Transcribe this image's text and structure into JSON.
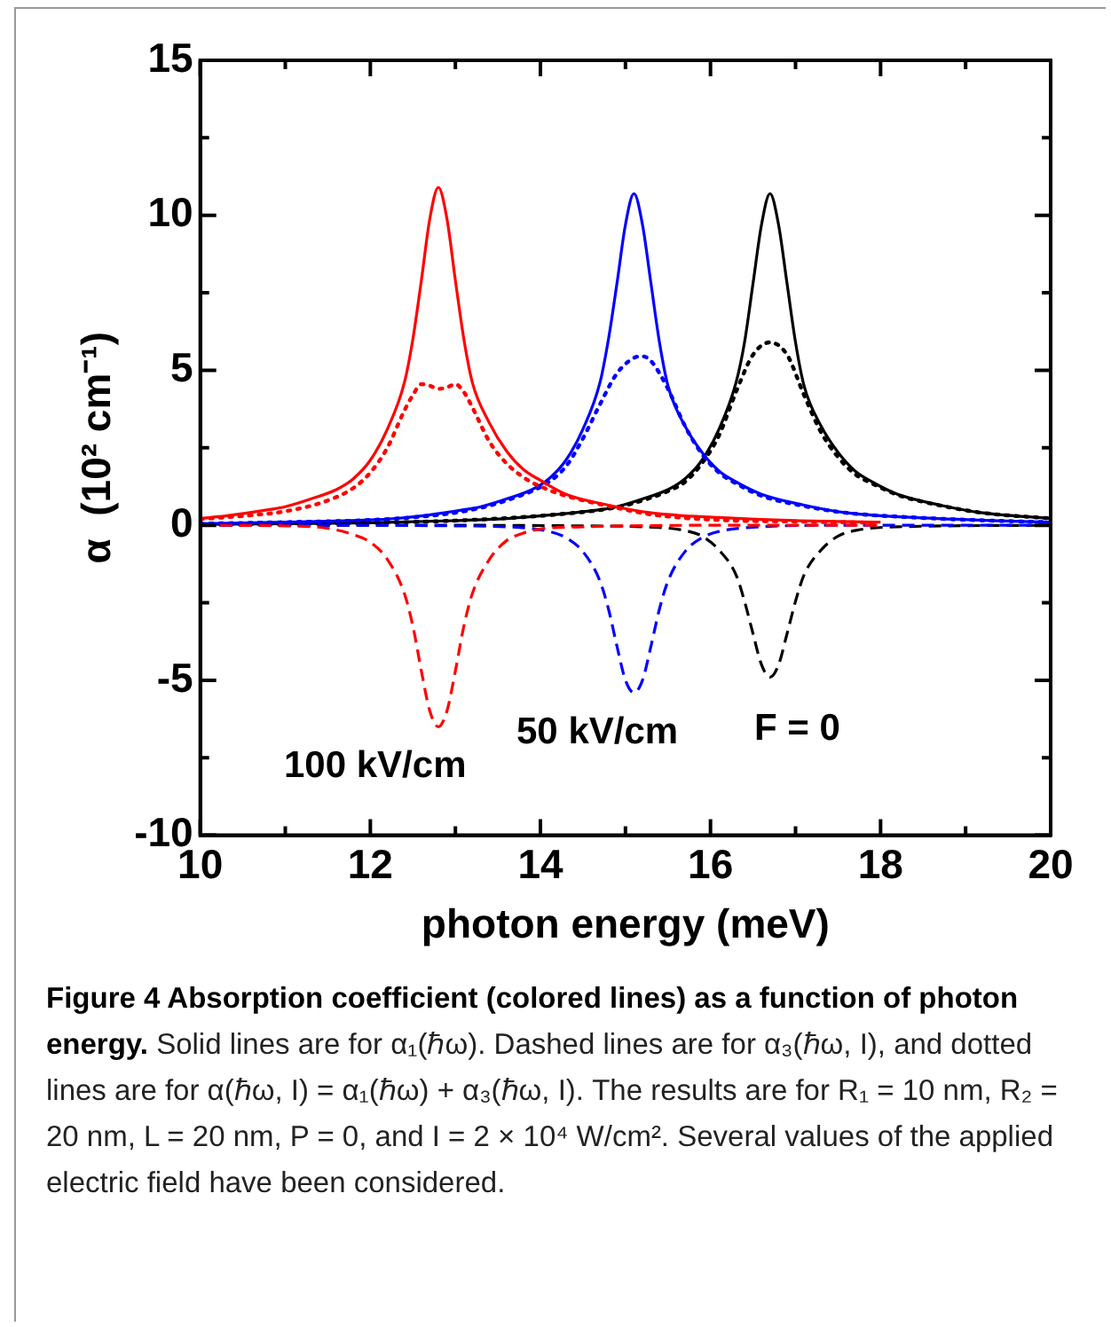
{
  "chart_data": {
    "type": "line",
    "xlabel": "photon energy (meV)",
    "ylabel": "α  (10² cm⁻¹)",
    "xlim": [
      10,
      20
    ],
    "xticks": [
      10,
      {
        "value": 11,
        "label": null
      },
      12,
      {
        "value": 13,
        "label": null
      },
      14,
      {
        "value": 15,
        "label": null
      },
      16,
      {
        "value": 17,
        "label": null
      },
      18,
      {
        "value": 19,
        "label": null
      },
      20
    ],
    "ylim": [
      -10,
      15
    ],
    "yticks": [
      -10,
      {
        "value": -7.5,
        "label": null
      },
      -5,
      {
        "value": -2.5,
        "label": null
      },
      0,
      {
        "value": 2.5,
        "label": null
      },
      5,
      {
        "value": 7.5,
        "label": null
      },
      10,
      {
        "value": 12.5,
        "label": null
      },
      15
    ],
    "grid": false,
    "legend": false,
    "marker": "none",
    "series": [
      {
        "color": "#ff0000",
        "line_style": "solid",
        "x": [
          10,
          10.3,
          10.8,
          11,
          11.3,
          11.6,
          11.8,
          12,
          12.2,
          12.4,
          12.5,
          12.6,
          12.7,
          12.8,
          12.9,
          13,
          13.1,
          13.2,
          13.4,
          13.6,
          13.8,
          14,
          14.3,
          14.8,
          15.3,
          16.1,
          17,
          18
        ],
        "values": [
          0.22,
          0.3,
          0.5,
          0.6,
          0.85,
          1.15,
          1.5,
          2.1,
          3.1,
          4.6,
          6.0,
          7.9,
          9.9,
          10.9,
          9.9,
          7.9,
          6.0,
          4.6,
          3.3,
          2.4,
          1.8,
          1.45,
          1.0,
          0.65,
          0.4,
          0.25,
          0.15,
          0.1
        ]
      },
      {
        "color": "#ff0000",
        "line_style": "dotted",
        "x": [
          10,
          10.5,
          11,
          11.5,
          11.8,
          12,
          12.2,
          12.4,
          12.5,
          12.6,
          12.7,
          12.8,
          12.9,
          13,
          13.1,
          13.2,
          13.4,
          13.6,
          13.8,
          14,
          14.3,
          14.8,
          15.3,
          16.1,
          17,
          18
        ],
        "values": [
          0.2,
          0.3,
          0.45,
          0.8,
          1.2,
          1.7,
          2.5,
          3.7,
          4.2,
          4.55,
          4.5,
          4.4,
          4.45,
          4.55,
          4.3,
          3.8,
          2.7,
          2.0,
          1.55,
          1.25,
          0.95,
          0.62,
          0.35,
          0.17,
          0.12,
          0.08
        ]
      },
      {
        "color": "#ff0000",
        "line_style": "dashed",
        "x": [
          10,
          11,
          11.5,
          11.8,
          12,
          12.2,
          12.4,
          12.5,
          12.6,
          12.7,
          12.8,
          12.9,
          13,
          13.1,
          13.2,
          13.4,
          13.6,
          13.8,
          14,
          14.5,
          15,
          16,
          18
        ],
        "values": [
          0,
          -0.02,
          -0.1,
          -0.3,
          -0.55,
          -1.1,
          -2.2,
          -3.25,
          -4.7,
          -6.0,
          -6.5,
          -6.0,
          -4.7,
          -3.25,
          -2.2,
          -1.1,
          -0.5,
          -0.25,
          -0.12,
          -0.05,
          -0.02,
          0,
          0
        ]
      },
      {
        "color": "#0000ff",
        "line_style": "solid",
        "x": [
          10,
          11,
          12,
          12.3,
          12.6,
          13.1,
          13.3,
          13.6,
          13.9,
          14.1,
          14.3,
          14.5,
          14.7,
          14.8,
          14.9,
          15,
          15.1,
          15.2,
          15.3,
          15.4,
          15.5,
          15.7,
          15.9,
          16.1,
          16.3,
          16.6,
          17.1,
          17.6,
          18.4,
          19.3,
          20
        ],
        "values": [
          0.05,
          0.1,
          0.17,
          0.22,
          0.3,
          0.5,
          0.6,
          0.85,
          1.15,
          1.5,
          2.1,
          3.1,
          4.6,
          6.0,
          7.8,
          9.7,
          10.7,
          9.7,
          7.8,
          5.9,
          4.5,
          3.2,
          2.35,
          1.75,
          1.4,
          1.0,
          0.65,
          0.4,
          0.25,
          0.15,
          0.1
        ]
      },
      {
        "color": "#0000ff",
        "line_style": "dotted",
        "x": [
          10,
          11,
          12,
          12.6,
          13.1,
          13.6,
          14.1,
          14.3,
          14.5,
          14.7,
          14.9,
          15.1,
          15.2,
          15.3,
          15.5,
          15.7,
          15.9,
          16.1,
          16.3,
          16.6,
          17.1,
          17.6,
          18.4,
          19.3,
          20
        ],
        "values": [
          0.05,
          0.1,
          0.17,
          0.28,
          0.45,
          0.8,
          1.4,
          1.9,
          2.8,
          3.9,
          4.9,
          5.4,
          5.45,
          5.3,
          4.4,
          3.2,
          2.3,
          1.7,
          1.35,
          0.95,
          0.62,
          0.4,
          0.25,
          0.15,
          0.1
        ]
      },
      {
        "color": "#0000ff",
        "line_style": "dashed",
        "x": [
          10,
          12,
          13,
          13.6,
          14.1,
          14.3,
          14.5,
          14.7,
          14.8,
          14.9,
          15,
          15.1,
          15.2,
          15.3,
          15.4,
          15.5,
          15.7,
          15.9,
          16.1,
          16.6,
          17.5,
          20
        ],
        "values": [
          0,
          0,
          -0.02,
          -0.05,
          -0.2,
          -0.4,
          -0.85,
          -1.8,
          -2.7,
          -3.9,
          -5.0,
          -5.4,
          -5.0,
          -3.9,
          -2.7,
          -1.8,
          -0.85,
          -0.4,
          -0.2,
          -0.05,
          0,
          0
        ]
      },
      {
        "color": "#000000",
        "line_style": "solid",
        "x": [
          10,
          11,
          12,
          13,
          13.5,
          13.9,
          14.2,
          14.7,
          14.9,
          15.2,
          15.5,
          15.7,
          15.9,
          16.1,
          16.3,
          16.4,
          16.5,
          16.6,
          16.7,
          16.8,
          16.9,
          17,
          17.1,
          17.3,
          17.5,
          17.7,
          17.9,
          18.2,
          18.7,
          19.2,
          20
        ],
        "values": [
          0.03,
          0.05,
          0.08,
          0.15,
          0.2,
          0.28,
          0.35,
          0.5,
          0.6,
          0.85,
          1.15,
          1.5,
          2.1,
          3.1,
          4.6,
          5.9,
          7.8,
          9.7,
          10.7,
          9.7,
          7.8,
          5.9,
          4.5,
          3.2,
          2.35,
          1.75,
          1.4,
          1.0,
          0.65,
          0.4,
          0.22
        ]
      },
      {
        "color": "#000000",
        "line_style": "dotted",
        "x": [
          10,
          12,
          13,
          14.2,
          14.9,
          15.2,
          15.5,
          15.7,
          15.9,
          16.1,
          16.3,
          16.5,
          16.7,
          16.9,
          17.1,
          17.3,
          17.5,
          17.7,
          17.9,
          18.2,
          18.7,
          19.2,
          20
        ],
        "values": [
          0.03,
          0.08,
          0.15,
          0.35,
          0.58,
          0.8,
          1.1,
          1.4,
          2.0,
          2.9,
          4.3,
          5.5,
          5.9,
          5.5,
          4.2,
          3.0,
          2.2,
          1.65,
          1.35,
          0.98,
          0.64,
          0.4,
          0.22
        ]
      },
      {
        "color": "#000000",
        "line_style": "dashed",
        "x": [
          10,
          13,
          14.5,
          15.2,
          15.7,
          15.9,
          16.1,
          16.3,
          16.4,
          16.5,
          16.6,
          16.7,
          16.8,
          16.9,
          17,
          17.1,
          17.3,
          17.5,
          17.7,
          18.2,
          20
        ],
        "values": [
          0,
          0,
          -0.02,
          -0.05,
          -0.17,
          -0.35,
          -0.8,
          -1.6,
          -2.45,
          -3.5,
          -4.5,
          -4.9,
          -4.5,
          -3.5,
          -2.45,
          -1.6,
          -0.8,
          -0.35,
          -0.17,
          -0.05,
          0
        ]
      }
    ],
    "annotations": [
      "100 kV/cm",
      "50 kV/cm",
      "F = 0",
      "Figure 4 Absorption coefficient (colored lines) as a function of photon energy.",
      "Solid lines are for α₁(ℏω). Dashed lines are for α₃(ℏω, I), and dotted lines are for α(ℏω, I) = α₁(ℏω) + α₃(ℏω, I). The results are for R₁ = 10 nm, R₂ = 20 nm, L = 20 nm, P = 0, and I = 2 × 10⁴ W/cm². Several values of the applied electric field have been considered."
    ]
  }
}
